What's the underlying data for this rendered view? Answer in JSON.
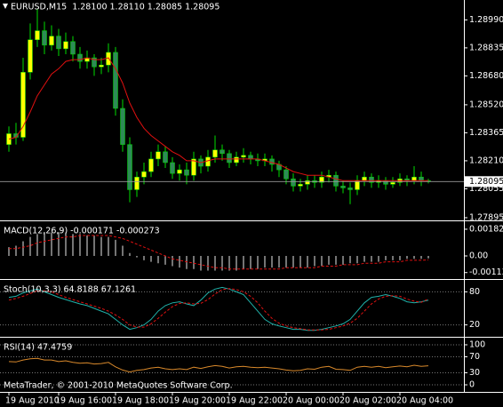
{
  "chart_data": [
    {
      "type": "candlestick",
      "title": "EURUSD,M15  1.28100 1.28110 1.28085 1.28095",
      "up_color": "#ffff00",
      "down_color": "#2e8b57",
      "wick_color": "#00dd00",
      "open": [
        1.283,
        1.2836,
        1.2834,
        1.287,
        1.2888,
        1.2893,
        1.2885,
        1.289,
        1.2883,
        1.2887,
        1.288,
        1.2876,
        1.2878,
        1.2873,
        1.2874,
        1.2881,
        1.285,
        1.283,
        1.2805,
        1.2812,
        1.2815,
        1.2822,
        1.2826,
        1.282,
        1.2814,
        1.2816,
        1.2813,
        1.2822,
        1.2818,
        1.2823,
        1.2827,
        1.2825,
        1.282,
        1.2823,
        1.2824,
        1.2822,
        1.2821,
        1.2822,
        1.2819,
        1.2816,
        1.2811,
        1.2807,
        1.2808,
        1.281,
        1.2809,
        1.2812,
        1.2813,
        1.2807,
        1.2806,
        1.2805,
        1.281,
        1.2812,
        1.2809,
        1.281,
        1.2808,
        1.2809,
        1.2811,
        1.281,
        1.2812,
        1.281
      ],
      "high": [
        1.284,
        1.2842,
        1.2878,
        1.2897,
        1.2905,
        1.2898,
        1.2896,
        1.2894,
        1.2892,
        1.289,
        1.2884,
        1.2882,
        1.288,
        1.2878,
        1.2886,
        1.2884,
        1.2855,
        1.2834,
        1.2815,
        1.282,
        1.2826,
        1.283,
        1.2829,
        1.2823,
        1.2819,
        1.282,
        1.2826,
        1.2824,
        1.2827,
        1.2835,
        1.283,
        1.2827,
        1.2826,
        1.2828,
        1.2826,
        1.2825,
        1.2825,
        1.2824,
        1.2821,
        1.2818,
        1.2814,
        1.2811,
        1.2813,
        1.2813,
        1.2815,
        1.2816,
        1.2815,
        1.281,
        1.2809,
        1.2813,
        1.2815,
        1.2814,
        1.2813,
        1.2812,
        1.2812,
        1.2814,
        1.2813,
        1.2818,
        1.2815,
        1.2811
      ],
      "low": [
        1.2826,
        1.283,
        1.2832,
        1.2866,
        1.2884,
        1.288,
        1.2882,
        1.2879,
        1.288,
        1.2876,
        1.2872,
        1.2872,
        1.2868,
        1.2869,
        1.287,
        1.2846,
        1.2826,
        1.2798,
        1.2801,
        1.2808,
        1.2812,
        1.2818,
        1.2817,
        1.2811,
        1.281,
        1.2808,
        1.281,
        1.2814,
        1.2815,
        1.282,
        1.2821,
        1.2817,
        1.2818,
        1.282,
        1.2819,
        1.2818,
        1.2818,
        1.2815,
        1.2812,
        1.2808,
        1.2804,
        1.2804,
        1.2805,
        1.2806,
        1.2806,
        1.2809,
        1.2804,
        1.2803,
        1.2797,
        1.2802,
        1.2807,
        1.2806,
        1.2806,
        1.2805,
        1.2806,
        1.2807,
        1.2807,
        1.2808,
        1.2807,
        1.28085
      ],
      "close": [
        1.2836,
        1.2834,
        1.287,
        1.2888,
        1.2893,
        1.2885,
        1.289,
        1.2883,
        1.2887,
        1.288,
        1.2876,
        1.2878,
        1.2873,
        1.2874,
        1.2881,
        1.285,
        1.283,
        1.2805,
        1.2812,
        1.2815,
        1.2822,
        1.2826,
        1.282,
        1.2814,
        1.2816,
        1.2813,
        1.2822,
        1.2818,
        1.2823,
        1.2827,
        1.2825,
        1.282,
        1.2823,
        1.2824,
        1.2822,
        1.2821,
        1.2822,
        1.2819,
        1.2816,
        1.2811,
        1.2807,
        1.2808,
        1.281,
        1.2809,
        1.2812,
        1.2813,
        1.2807,
        1.2806,
        1.2805,
        1.281,
        1.2812,
        1.2809,
        1.281,
        1.2808,
        1.2809,
        1.2811,
        1.281,
        1.2812,
        1.281,
        1.28095
      ],
      "lines": [
        {
          "color": "#e01010",
          "values": [
            1.2833,
            1.2834,
            1.284,
            1.2848,
            1.2857,
            1.2863,
            1.2869,
            1.2872,
            1.2876,
            1.2877,
            1.2877,
            1.2878,
            1.2877,
            1.2877,
            1.2878,
            1.2872,
            1.2864,
            1.2853,
            1.2845,
            1.2839,
            1.2835,
            1.2832,
            1.2829,
            1.2826,
            1.2824,
            1.2821,
            1.2821,
            1.282,
            1.2821,
            1.2822,
            1.2822,
            1.2822,
            1.2822,
            1.2822,
            1.2822,
            1.2822,
            1.2821,
            1.282,
            1.2819,
            1.2817,
            1.2815,
            1.2814,
            1.2813,
            1.2813,
            1.2813,
            1.2812,
            1.2811,
            1.281,
            1.281,
            1.281,
            1.281,
            1.281,
            1.281,
            1.281,
            1.281,
            1.281,
            1.281,
            1.281,
            1.281,
            1.281
          ]
        }
      ],
      "ylim": [
        1.27885,
        1.291
      ],
      "yticks": [
        {
          "value": 1.2899,
          "label": "1.28990"
        },
        {
          "value": 1.28835,
          "label": "1.28835"
        },
        {
          "value": 1.2868,
          "label": "1.28680"
        },
        {
          "value": 1.2852,
          "label": "1.28520"
        },
        {
          "value": 1.28365,
          "label": "1.28365"
        },
        {
          "value": 1.2821,
          "label": "1.28210"
        },
        {
          "value": 1.28055,
          "label": "1.28055"
        },
        {
          "value": 1.27895,
          "label": "1.27895"
        }
      ],
      "xlim": [
        -1.25,
        64
      ],
      "xticks": [
        {
          "value": 0,
          "label": "19 Aug 2010"
        },
        {
          "value": 7,
          "label": "19 Aug 16:00"
        },
        {
          "value": 15,
          "label": "19 Aug 18:00"
        },
        {
          "value": 23,
          "label": "19 Aug 20:00"
        },
        {
          "value": 31,
          "label": "19 Aug 22:00"
        },
        {
          "value": 39,
          "label": "20 Aug 00:00"
        },
        {
          "value": 47,
          "label": "20 Aug 02:00"
        },
        {
          "value": 55,
          "label": "20 Aug 04:00"
        }
      ]
    },
    {
      "type": "bar",
      "title": "MACD(12,26,9) -0.000171 -0.000273",
      "color": "#e8e8e8",
      "values": [
        0.0006,
        0.0007,
        0.001,
        0.0013,
        0.0015,
        0.0016,
        0.0016,
        0.0016,
        0.0016,
        0.0015,
        0.0015,
        0.0014,
        0.0014,
        0.0013,
        0.0013,
        0.0011,
        0.0007,
        0.0002,
        -0.0001,
        -0.0003,
        -0.0004,
        -0.0005,
        -0.0006,
        -0.0007,
        -0.0008,
        -0.0009,
        -0.0009,
        -0.001,
        -0.001,
        -0.001,
        -0.001,
        -0.001,
        -0.001,
        -0.0009,
        -0.0009,
        -0.0009,
        -0.0008,
        -0.0008,
        -0.0008,
        -0.0008,
        -0.0008,
        -0.0008,
        -0.0008,
        -0.0007,
        -0.0007,
        -0.0006,
        -0.0006,
        -0.0006,
        -0.0005,
        -0.0005,
        -0.0004,
        -0.0004,
        -0.0004,
        -0.0003,
        -0.0003,
        -0.0003,
        -0.0002,
        -0.0002,
        -0.0002,
        -0.000171
      ],
      "lines": [
        {
          "color": "#e01010",
          "dashed": true,
          "values": [
            0.0005,
            0.0005,
            0.0006,
            0.0007,
            0.0009,
            0.001,
            0.0011,
            0.0012,
            0.0013,
            0.0013,
            0.0014,
            0.0014,
            0.0014,
            0.0014,
            0.0014,
            0.0013,
            0.0012,
            0.001,
            0.0008,
            0.0006,
            0.0004,
            0.0002,
            0,
            -0.0002,
            -0.0003,
            -0.0004,
            -0.0005,
            -0.0006,
            -0.0007,
            -0.0008,
            -0.0008,
            -0.0009,
            -0.0009,
            -0.0009,
            -0.0009,
            -0.0009,
            -0.0009,
            -0.0009,
            -0.0009,
            -0.0008,
            -0.0008,
            -0.0008,
            -0.0008,
            -0.0008,
            -0.0007,
            -0.0007,
            -0.0007,
            -0.0006,
            -0.0006,
            -0.0006,
            -0.0005,
            -0.0005,
            -0.0005,
            -0.0004,
            -0.0004,
            -0.0004,
            -0.0003,
            -0.0003,
            -0.0003,
            -0.000273
          ]
        }
      ],
      "ylim": [
        -0.00152,
        0.00231
      ],
      "yticks": [
        0.001827,
        {
          "value": 0,
          "label": "0.00"
        },
        -0.001139
      ]
    },
    {
      "type": "line",
      "title": "Stoch(10,3,3) 64.8188 67.1261",
      "lines": [
        {
          "color": "#20b2aa",
          "values": [
            70,
            72,
            78,
            82,
            85,
            80,
            75,
            70,
            66,
            62,
            58,
            55,
            50,
            45,
            40,
            30,
            20,
            12,
            15,
            20,
            30,
            45,
            55,
            60,
            62,
            58,
            55,
            65,
            78,
            85,
            88,
            85,
            80,
            75,
            60,
            45,
            30,
            22,
            18,
            15,
            12,
            12,
            10,
            10,
            12,
            15,
            18,
            22,
            30,
            45,
            60,
            70,
            72,
            75,
            72,
            68,
            62,
            60,
            62,
            64.8188
          ]
        },
        {
          "color": "#e01010",
          "dashed": true,
          "values": [
            65,
            68,
            72,
            77,
            82,
            82,
            80,
            75,
            70,
            66,
            62,
            58,
            54,
            50,
            45,
            38,
            30,
            20,
            16,
            16,
            22,
            32,
            43,
            53,
            59,
            60,
            58,
            59,
            66,
            76,
            84,
            86,
            84,
            80,
            72,
            60,
            45,
            32,
            23,
            18,
            15,
            13,
            11,
            11,
            11,
            12,
            15,
            18,
            23,
            32,
            45,
            58,
            67,
            72,
            73,
            72,
            67,
            63,
            61,
            67.1261
          ]
        }
      ],
      "ylim": [
        0,
        100
      ],
      "yticks": [
        80,
        20
      ]
    },
    {
      "type": "line",
      "title": "RSI(14) 47.4759",
      "lines": [
        {
          "color": "#d9892b",
          "values": [
            58,
            57,
            62,
            65,
            66,
            62,
            62,
            58,
            60,
            56,
            54,
            55,
            52,
            53,
            56,
            45,
            37,
            32,
            36,
            38,
            42,
            44,
            40,
            38,
            40,
            38,
            44,
            41,
            45,
            48,
            46,
            42,
            45,
            46,
            44,
            43,
            44,
            42,
            40,
            37,
            35,
            36,
            40,
            39,
            44,
            46,
            39,
            38,
            36,
            44,
            46,
            44,
            46,
            43,
            45,
            47,
            45,
            49,
            46,
            47.4759
          ]
        }
      ],
      "ylim": [
        -15.5,
        115.5
      ],
      "yticks": [
        100,
        70,
        30,
        0
      ],
      "annotation": "MetaTrader, © 2001-2010 MetaQuotes Software Corp."
    }
  ]
}
